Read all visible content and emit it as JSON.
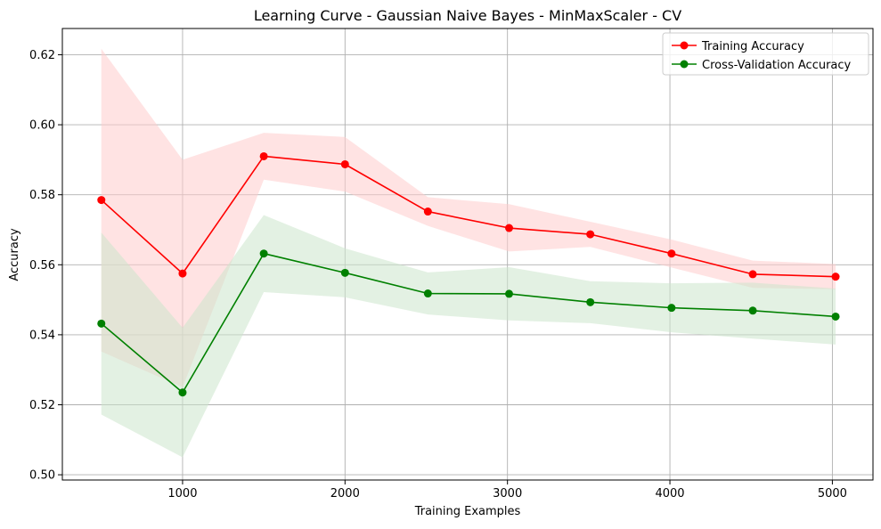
{
  "chart_data": {
    "type": "line",
    "title": "Learning Curve - Gaussian Naive Bayes - MinMaxScaler - CV",
    "xlabel": "Training Examples",
    "ylabel": "Accuracy",
    "xlim": [
      260,
      5250
    ],
    "ylim": [
      0.4985,
      0.6275
    ],
    "xticks": [
      1000,
      2000,
      3000,
      4000,
      5000
    ],
    "yticks": [
      0.5,
      0.52,
      0.54,
      0.56,
      0.58,
      0.6,
      0.62
    ],
    "xtick_labels": [
      "1000",
      "2000",
      "3000",
      "4000",
      "5000"
    ],
    "ytick_labels": [
      "0.50",
      "0.52",
      "0.54",
      "0.56",
      "0.58",
      "0.60",
      "0.62"
    ],
    "grid": true,
    "legend_position": "upper right",
    "x": [
      500,
      1000,
      1500,
      2000,
      2510,
      3010,
      3510,
      4010,
      4510,
      5020
    ],
    "series": [
      {
        "name": "Training Accuracy",
        "color": "#ff0000",
        "band_color": "#ffcccc",
        "marker": "circle",
        "values": [
          0.5785,
          0.5575,
          0.591,
          0.5887,
          0.5752,
          0.5705,
          0.5687,
          0.5632,
          0.5573,
          0.5566
        ],
        "band_upper": [
          0.6217,
          0.59,
          0.5977,
          0.5965,
          0.5793,
          0.5773,
          0.5723,
          0.5672,
          0.5612,
          0.5602
        ],
        "band_lower": [
          0.5352,
          0.525,
          0.5843,
          0.5809,
          0.5711,
          0.5638,
          0.5651,
          0.5592,
          0.5534,
          0.553
        ]
      },
      {
        "name": "Cross-Validation Accuracy",
        "color": "#008000",
        "band_color": "#cce6cc",
        "marker": "circle",
        "values": [
          0.5432,
          0.5235,
          0.5632,
          0.5577,
          0.5518,
          0.5517,
          0.5493,
          0.5477,
          0.5469,
          0.5452
        ],
        "band_upper": [
          0.5692,
          0.542,
          0.5742,
          0.5647,
          0.5578,
          0.5593,
          0.5553,
          0.5547,
          0.5549,
          0.5532
        ],
        "band_lower": [
          0.5172,
          0.505,
          0.5522,
          0.5507,
          0.5458,
          0.5441,
          0.5433,
          0.5407,
          0.5389,
          0.5372
        ]
      }
    ]
  }
}
